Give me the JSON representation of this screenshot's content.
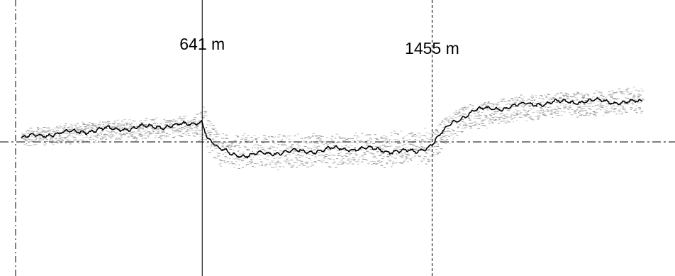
{
  "chart_data": {
    "type": "line",
    "title": "",
    "xlabel": "",
    "ylabel": "",
    "left_edge_text": "",
    "grid": false,
    "legend": "none",
    "x_unit": "m",
    "xlim": [
      -20,
      2260
    ],
    "ylim": [
      -170,
      180
    ],
    "baseline": {
      "y": 0,
      "style": "dash-dot"
    },
    "markers": [
      {
        "x": 641,
        "label": "641 m",
        "style": "solid"
      },
      {
        "x": 1455,
        "label": "1455 m",
        "style": "dashed"
      }
    ],
    "series": [
      {
        "style": "mean-line",
        "x": [
          0,
          100,
          200,
          300,
          400,
          500,
          600,
          640,
          660,
          700,
          800,
          900,
          1000,
          1100,
          1200,
          1300,
          1400,
          1455,
          1520,
          1600,
          1700,
          1800,
          1900,
          2000,
          2100,
          2200
        ],
        "y": [
          5,
          10,
          13,
          16,
          18,
          20,
          22,
          28,
          5,
          -10,
          -18,
          -13,
          -12,
          -9,
          -8,
          -11,
          -13,
          -2,
          22,
          40,
          43,
          48,
          50,
          52,
          51,
          50
        ]
      },
      {
        "style": "scatter-upper",
        "x": [
          0,
          200,
          400,
          600,
          640,
          700,
          900,
          1100,
          1300,
          1455,
          1550,
          1700,
          1900,
          2100,
          2200
        ],
        "y": [
          14,
          24,
          28,
          32,
          45,
          10,
          8,
          10,
          12,
          16,
          45,
          55,
          62,
          65,
          72
        ]
      },
      {
        "style": "scatter-lower",
        "x": [
          0,
          200,
          400,
          600,
          640,
          700,
          900,
          1100,
          1300,
          1455,
          1550,
          1700,
          1900,
          2100,
          2200
        ],
        "y": [
          -3,
          0,
          4,
          8,
          0,
          -30,
          -32,
          -30,
          -30,
          -25,
          12,
          25,
          32,
          36,
          38
        ]
      }
    ]
  }
}
